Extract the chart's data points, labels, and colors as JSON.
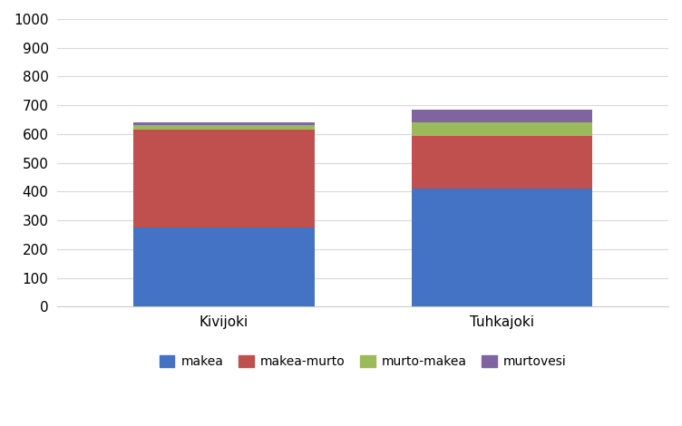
{
  "categories": [
    "Kivijoki",
    "Tuhkajoki"
  ],
  "series": {
    "makea": [
      275,
      410
    ],
    "makea-murto": [
      340,
      185
    ],
    "murto-makea": [
      15,
      45
    ],
    "murtovesi": [
      10,
      45
    ]
  },
  "colors": {
    "makea": "#4472C4",
    "makea-murto": "#C0504D",
    "murto-makea": "#9BBB59",
    "murtovesi": "#8064A2"
  },
  "ylim": [
    0,
    1000
  ],
  "yticks": [
    0,
    100,
    200,
    300,
    400,
    500,
    600,
    700,
    800,
    900,
    1000
  ],
  "background_color": "#FFFFFF",
  "grid_color": "#D9D9D9",
  "bar_width": 0.65,
  "legend_labels": [
    "makea",
    "makea-murto",
    "murto-makea",
    "murtovesi"
  ]
}
